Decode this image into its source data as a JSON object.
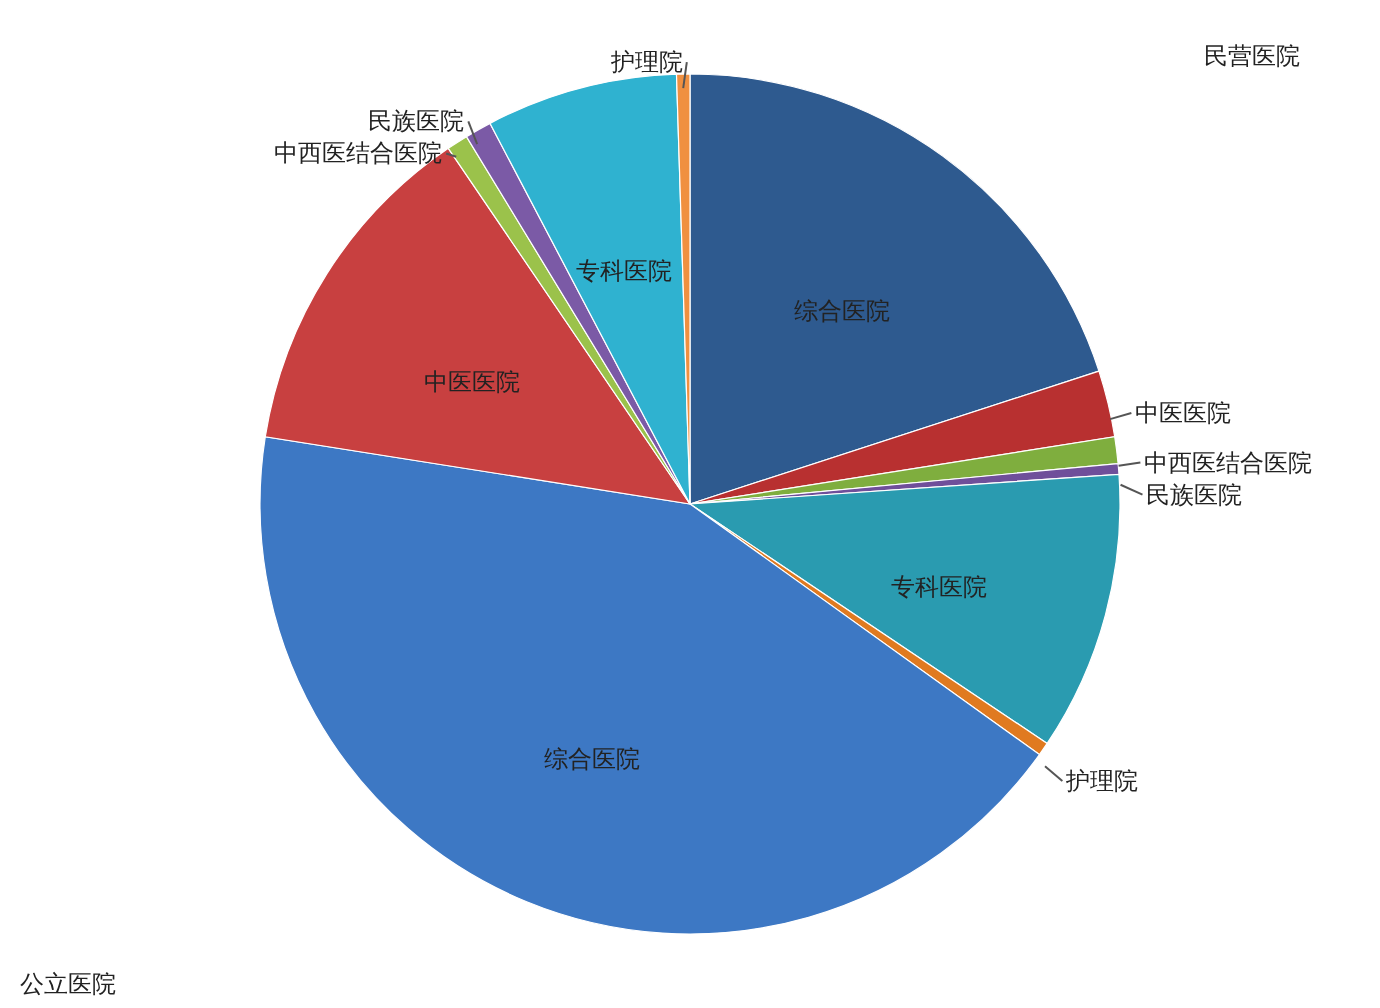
{
  "chart_data": {
    "type": "pie",
    "categories": [
      "综合医院",
      "中医医院",
      "中西医结合医院",
      "民族医院",
      "专科医院",
      "护理院",
      "综合医院",
      "中医医院",
      "中西医结合医院",
      "民族医院",
      "专科医院",
      "护理院"
    ],
    "values": [
      20,
      2.5,
      1,
      0.4,
      10.5,
      0.5,
      42.6,
      13,
      0.8,
      1,
      7.2,
      0.5
    ],
    "colors": [
      "#2e5a8f",
      "#b83030",
      "#7fae3e",
      "#6f4f9a",
      "#2a9bb0",
      "#e07a20",
      "#3d78c4",
      "#c84040",
      "#9bc24b",
      "#7b5aa6",
      "#2fb2d0",
      "#f09040"
    ],
    "annotations": [
      "民营医院",
      "公立医院"
    ]
  }
}
